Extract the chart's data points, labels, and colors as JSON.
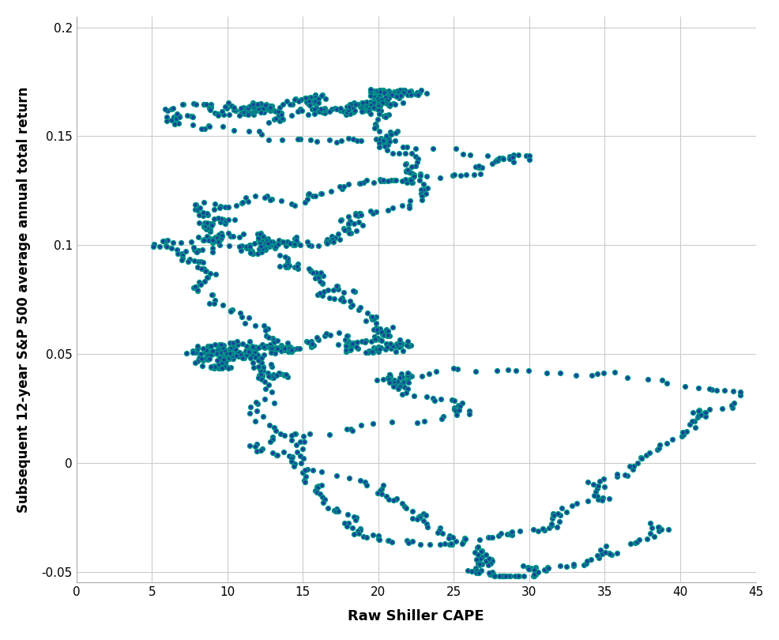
{
  "title": "",
  "xlabel": "Raw Shiller CAPE",
  "ylabel": "Subsequent 12-year S&P 500 average annual total return",
  "xlim": [
    0,
    45
  ],
  "ylim": [
    -0.055,
    0.205
  ],
  "xticks": [
    0,
    5,
    10,
    15,
    20,
    25,
    30,
    35,
    40,
    45
  ],
  "yticks": [
    -0.05,
    0,
    0.05,
    0.1,
    0.15,
    0.2
  ],
  "dot_face_color": "#1a3f9e",
  "dot_edge_color": "#009688",
  "dot_size": 18,
  "dot_linewidth": 1.0,
  "background_color": "#ffffff",
  "grid_color": "#cccccc",
  "figsize": [
    9.87,
    8.1
  ],
  "dpi": 100,
  "seed": 7
}
